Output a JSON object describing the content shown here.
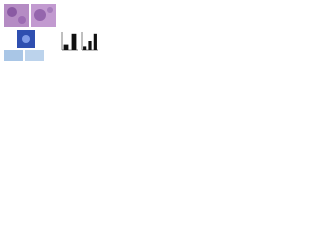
{
  "chart_data": [
    {
      "type": "bar",
      "categories": [
        null,
        null
      ],
      "values": [
        0.3,
        0.9
      ],
      "color": "#111111",
      "ylim": [
        0,
        1
      ]
    },
    {
      "type": "bar",
      "categories": [
        null,
        null,
        null
      ],
      "values": [
        0.2,
        0.5,
        0.9
      ],
      "color": "#111111",
      "ylim": [
        0,
        1
      ]
    }
  ]
}
